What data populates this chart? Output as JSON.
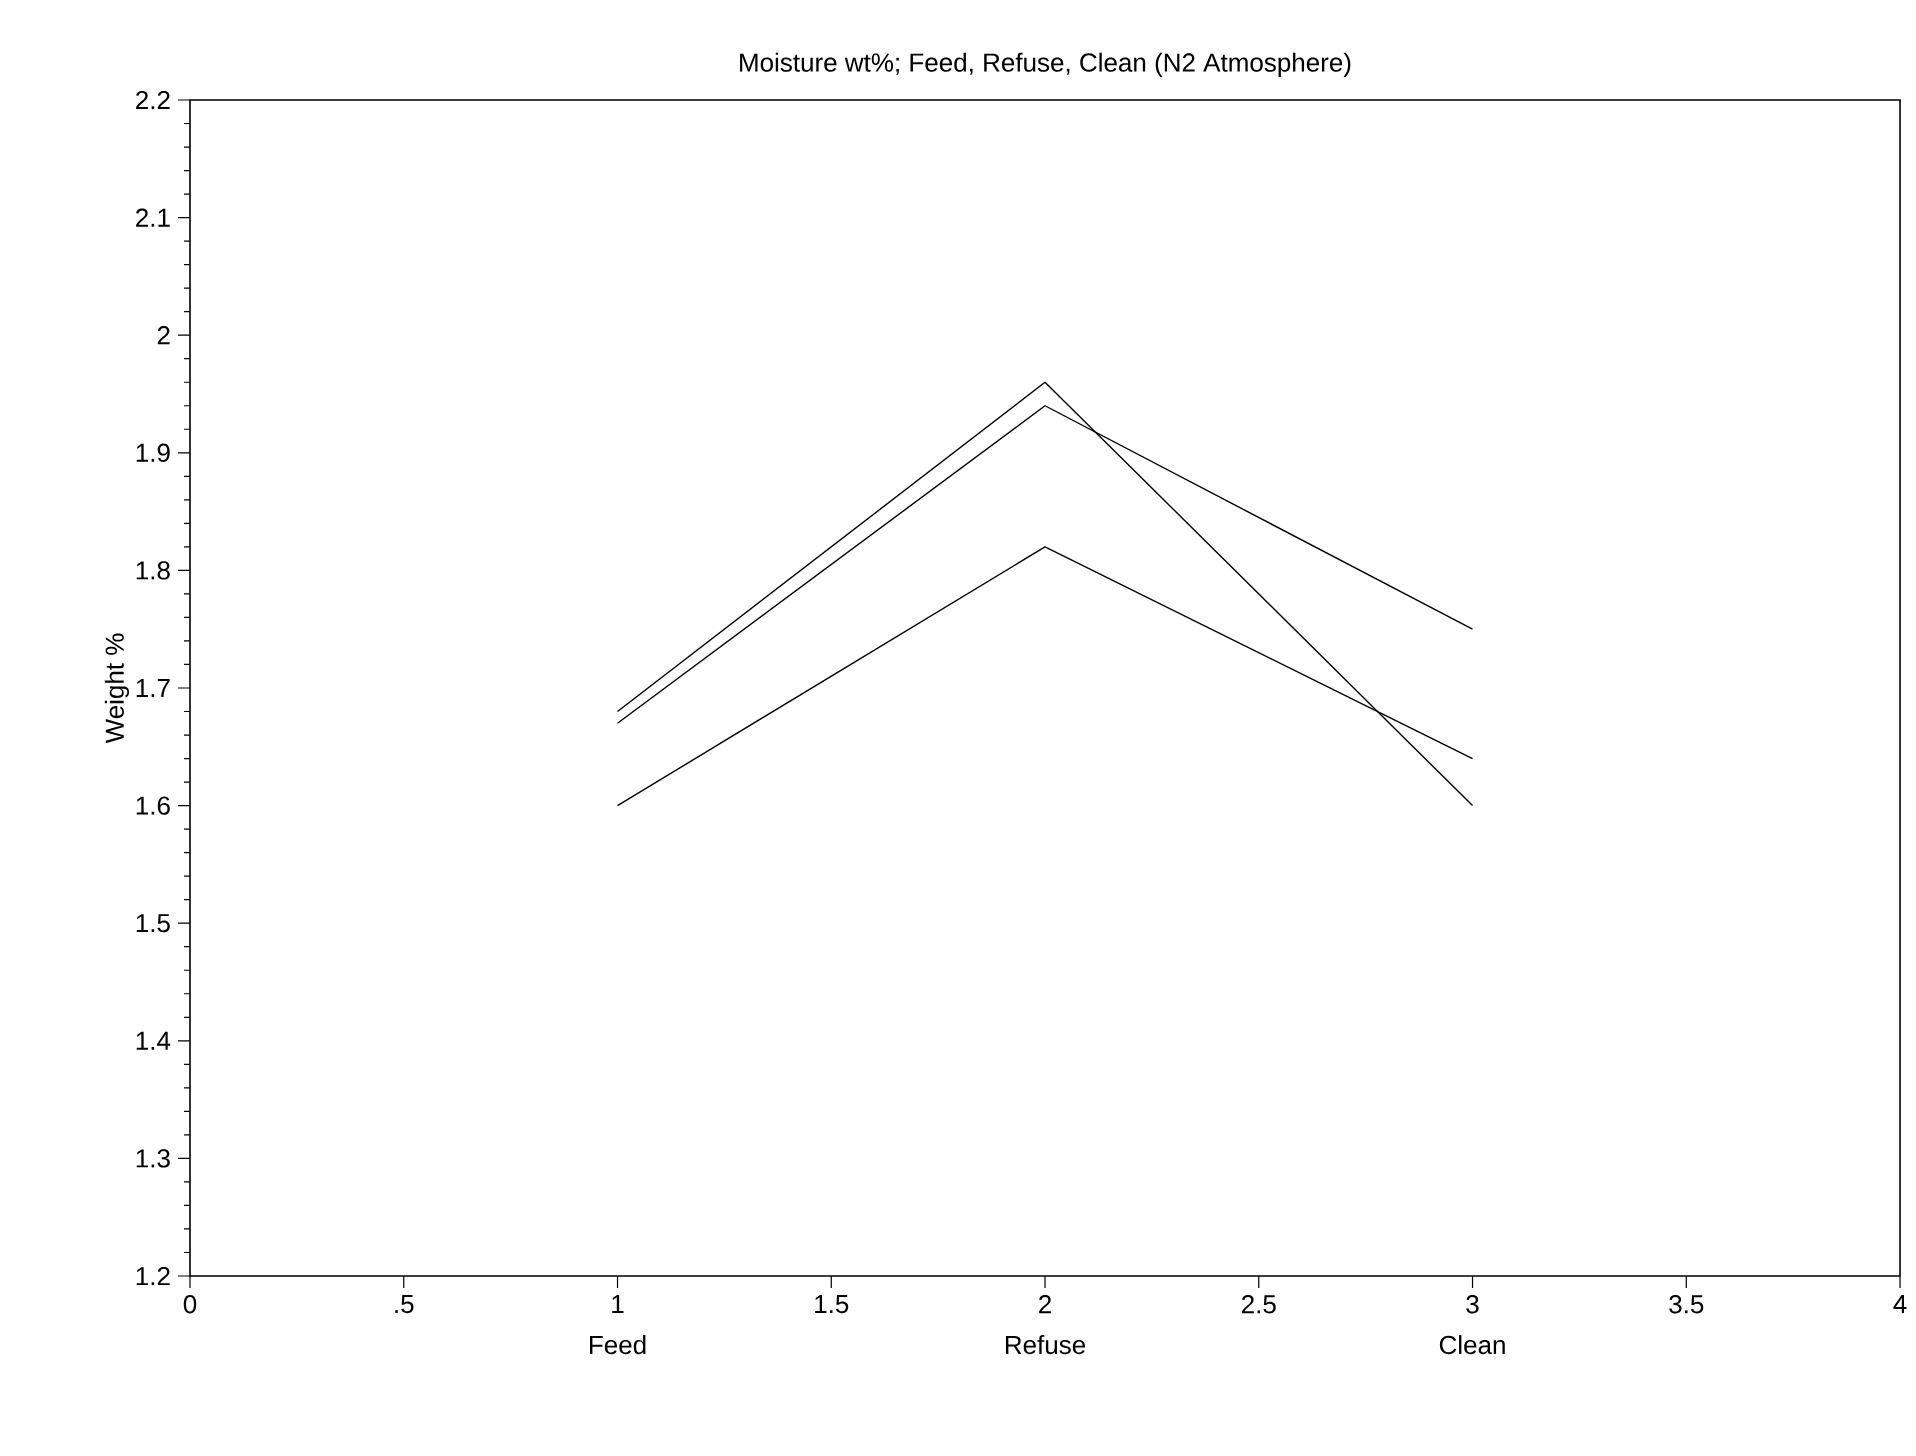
{
  "chart_data": {
    "type": "line",
    "title": "Moisture wt%; Feed, Refuse, Clean (N2 Atmosphere)",
    "ylabel": "Weight %",
    "x": [
      1,
      2,
      3
    ],
    "series": [
      {
        "color": "#000000",
        "values": [
          1.68,
          1.96,
          1.6
        ]
      },
      {
        "color": "#000000",
        "values": [
          1.67,
          1.94,
          1.75
        ]
      },
      {
        "color": "#000000",
        "values": [
          1.6,
          1.82,
          1.64
        ]
      }
    ],
    "xlim": [
      0,
      4
    ],
    "xticks": [
      0,
      {
        "value": 0.5,
        "label": ".5"
      },
      1,
      1.5,
      2,
      2.5,
      3,
      3.5,
      4
    ],
    "ylim": [
      1.2,
      2.2
    ],
    "yticks": [
      1.2,
      1.3,
      1.4,
      1.5,
      1.6,
      1.7,
      1.8,
      1.9,
      2,
      2.1,
      2.2
    ],
    "annotations": [
      "Feed",
      "Refuse",
      "Clean"
    ],
    "grid": false,
    "legend": false,
    "marker": "none",
    "line_style": "solid"
  }
}
